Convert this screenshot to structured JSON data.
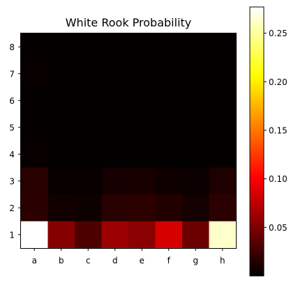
{
  "chart_data": {
    "type": "heatmap",
    "title": "White Rook Probability",
    "x_categories": [
      "a",
      "b",
      "c",
      "d",
      "e",
      "f",
      "g",
      "h"
    ],
    "y_categories": [
      "8",
      "7",
      "6",
      "5",
      "4",
      "3",
      "2",
      "1"
    ],
    "values": [
      [
        0.002,
        0.001,
        0.001,
        0.001,
        0.001,
        0.001,
        0.001,
        0.002
      ],
      [
        0.003,
        0.001,
        0.001,
        0.001,
        0.001,
        0.001,
        0.001,
        0.002
      ],
      [
        0.002,
        0.001,
        0.001,
        0.001,
        0.001,
        0.001,
        0.001,
        0.001
      ],
      [
        0.002,
        0.001,
        0.001,
        0.001,
        0.001,
        0.001,
        0.001,
        0.001
      ],
      [
        0.003,
        0.001,
        0.001,
        0.001,
        0.001,
        0.001,
        0.001,
        0.002
      ],
      [
        0.016,
        0.003,
        0.003,
        0.008,
        0.01,
        0.006,
        0.005,
        0.012
      ],
      [
        0.017,
        0.007,
        0.006,
        0.016,
        0.018,
        0.014,
        0.008,
        0.017
      ],
      [
        0.277,
        0.053,
        0.03,
        0.062,
        0.055,
        0.085,
        0.043,
        0.262
      ]
    ],
    "colormap": "hot",
    "vmin": 0.0,
    "vmax": 0.277,
    "colorbar": {
      "ticks": [
        0.05,
        0.1,
        0.15,
        0.2,
        0.25
      ],
      "tick_labels": [
        "0.05",
        "0.10",
        "0.15",
        "0.20",
        "0.25"
      ]
    },
    "xlabel": "",
    "ylabel": "",
    "grid": false
  }
}
